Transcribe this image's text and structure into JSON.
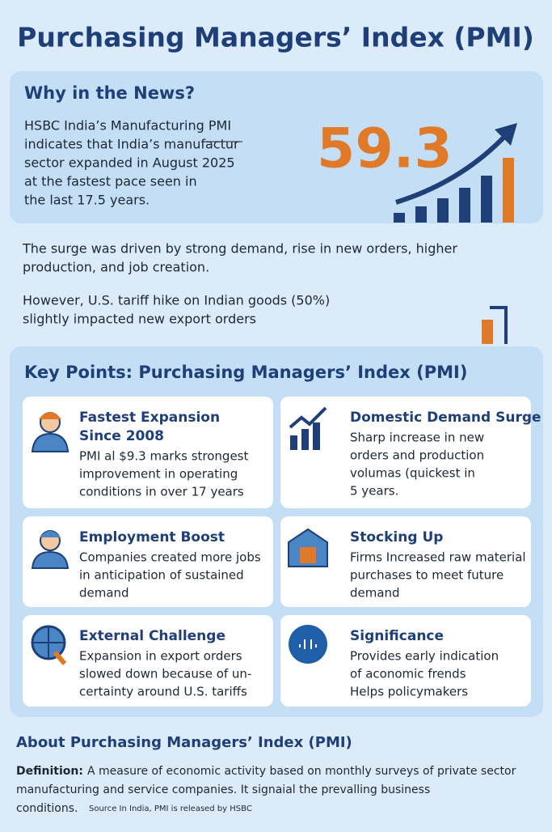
{
  "header": {
    "title": "Purchasing Managers’ Index (PMI)"
  },
  "news": {
    "heading": "Why in the News?",
    "lines": [
      "HSBC India’s Manufacturing PMI",
      "indicates that India’s manufactur",
      "sector expanded in August 2025",
      "at the fastest pace seen in",
      "the last 17.5 years."
    ],
    "figure": "59.3"
  },
  "paragraphs": [
    [
      "The surge was driven by strong demand, rise in new orders, higher",
      "production, and job creation."
    ],
    [
      "However, U.S. tariff hike on Indian goods (50%)",
      "slightly impacted new export orders"
    ]
  ],
  "key_points": {
    "heading": "Key Points: Purchasing Managers’ Index (PMI)",
    "cards": [
      {
        "title": [
          "Fastest Expansion",
          "Since 2008"
        ],
        "text": [
          "PMI al $9.3 marks strongest",
          "improvement in operating",
          "conditions in over 17 years"
        ]
      },
      {
        "title": [
          "Domestic Demand Surge"
        ],
        "text": [
          "Sharp increase in new",
          "orders and production",
          "volumas (quickest in",
          "5 years."
        ]
      },
      {
        "title": [
          "Employment Boost"
        ],
        "text": [
          "Companies created more jobs",
          "in anticipation of sustained",
          "demand"
        ]
      },
      {
        "title": [
          "Stocking Up"
        ],
        "text": [
          "Firms Increased raw material",
          "purchases to meet future",
          "demand"
        ]
      },
      {
        "title": [
          "External Challenge"
        ],
        "text": [
          "Expansion in export orders",
          "slowed down because of un-",
          "certainty around U.S. tariffs"
        ]
      },
      {
        "title": [
          "Significance"
        ],
        "text": [
          "Provides early indication",
          "of aconomic frends",
          "Helps policymakers"
        ]
      }
    ]
  },
  "about": {
    "heading": "About Purchasing Managers’ Index (PMI)",
    "label": "Definition:",
    "lines": [
      "A measure of economic activity based on monthly surveys of private sector",
      "manufacturing and service companies. It signaial  the prevalling business",
      "conditions."
    ],
    "source": "Source  In India, PMI is released by HSBC"
  }
}
